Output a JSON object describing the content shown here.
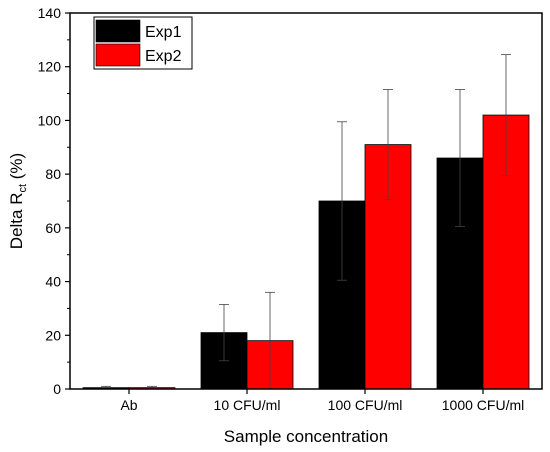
{
  "chart_data": {
    "type": "bar",
    "categories": [
      "Ab",
      "10 CFU/ml",
      "100 CFU/ml",
      "1000 CFU/ml"
    ],
    "series": [
      {
        "name": "Exp1",
        "color": "#000000",
        "values": [
          0.5,
          21,
          70,
          86
        ],
        "errors": [
          0.5,
          10.5,
          29.5,
          25.5
        ]
      },
      {
        "name": "Exp2",
        "color": "#ff0000",
        "values": [
          0.5,
          18,
          91,
          102
        ],
        "errors": [
          0.5,
          18,
          20.5,
          22.5
        ]
      }
    ],
    "xlabel": "Sample concentration",
    "ylabel": {
      "main": "Delta R",
      "sub": "ct",
      "suffix": " (%)"
    },
    "ylim": [
      0,
      140
    ],
    "yticks": [
      0,
      20,
      40,
      60,
      80,
      100,
      120,
      140
    ],
    "grid": false,
    "legend": "top-left"
  }
}
